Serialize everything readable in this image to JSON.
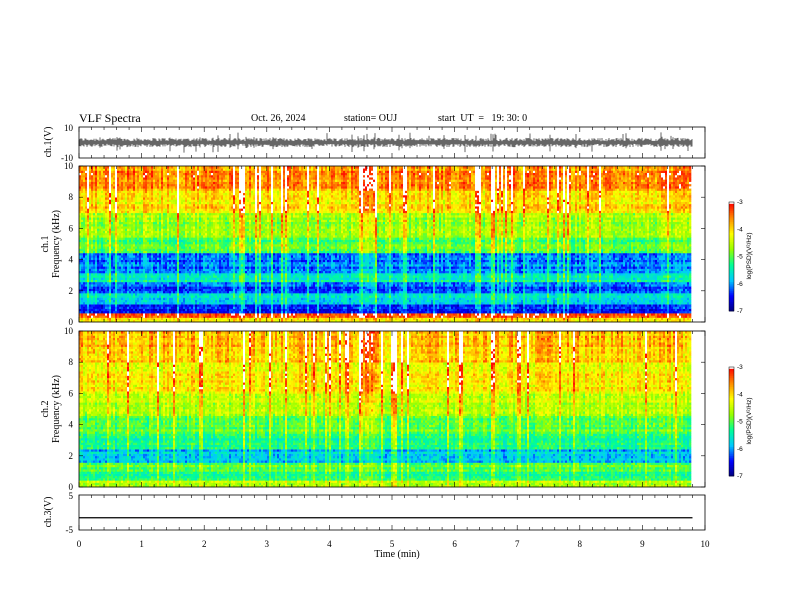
{
  "header": {
    "title": "VLF Spectra",
    "date": "Oct. 26, 2024",
    "station": "station= OUJ",
    "start_ut": "start  UT  =   19: 30: 0"
  },
  "colors": {
    "colormap": [
      "#00007a",
      "#0000ff",
      "#00c8ff",
      "#00ff96",
      "#96ff00",
      "#ffff00",
      "#ff8c00",
      "#ff0000",
      "#ffffff"
    ]
  },
  "chart_data": [
    {
      "type": "line",
      "id": "ch1-waveform",
      "ylabel": "ch.1(V)",
      "ylim": [
        -10,
        10
      ],
      "yticks": [
        "10",
        "-10"
      ],
      "note_values": "noisy waveform around 0 V with amplitude about ±3 V",
      "y_mean": 0,
      "y_amplitude": 3
    },
    {
      "type": "heatmap",
      "id": "ch1-spectrogram",
      "ylabel_line1": "ch.1",
      "ylabel_line2": "Frequency (kHz)",
      "ylim": [
        0,
        10
      ],
      "yticks": [
        "0",
        "2",
        "4",
        "6",
        "8",
        "10"
      ],
      "colorbar": {
        "label": "log(PSD)(V²/Hz)",
        "range": [
          -7,
          -3
        ],
        "ticks": [
          "-3",
          "-4",
          "-5",
          "-6",
          "-7"
        ]
      },
      "bands_khz": [
        {
          "from": 0,
          "to": 0.3,
          "level": -4.2
        },
        {
          "from": 0.3,
          "to": 0.6,
          "level": -3.2
        },
        {
          "from": 0.6,
          "to": 1.2,
          "level": -6.3
        },
        {
          "from": 1.2,
          "to": 1.8,
          "level": -5.6
        },
        {
          "from": 1.8,
          "to": 2.6,
          "level": -6.2
        },
        {
          "from": 2.6,
          "to": 3.2,
          "level": -5.4
        },
        {
          "from": 3.2,
          "to": 4.4,
          "level": -6.1
        },
        {
          "from": 4.4,
          "to": 5.4,
          "level": -5.0
        },
        {
          "from": 5.4,
          "to": 7.0,
          "level": -4.6
        },
        {
          "from": 7.0,
          "to": 8.5,
          "level": -4.0
        },
        {
          "from": 8.5,
          "to": 10,
          "level": -3.6
        }
      ]
    },
    {
      "type": "heatmap",
      "id": "ch2-spectrogram",
      "ylabel_line1": "ch.2",
      "ylabel_line2": "Frequency (kHz)",
      "ylim": [
        0,
        10
      ],
      "yticks": [
        "0",
        "2",
        "4",
        "6",
        "8",
        "10"
      ],
      "colorbar": {
        "label": "log(PSD)(V²/Hz)",
        "range": [
          -7,
          -3
        ],
        "ticks": [
          "-3",
          "-4",
          "-5",
          "-6",
          "-7"
        ]
      },
      "bands_khz": [
        {
          "from": 0,
          "to": 0.4,
          "level": -4.6
        },
        {
          "from": 0.4,
          "to": 1.0,
          "level": -5.3
        },
        {
          "from": 1.0,
          "to": 1.6,
          "level": -4.9
        },
        {
          "from": 1.6,
          "to": 2.4,
          "level": -5.8
        },
        {
          "from": 2.4,
          "to": 3.4,
          "level": -5.3
        },
        {
          "from": 3.4,
          "to": 4.6,
          "level": -4.9
        },
        {
          "from": 4.6,
          "to": 6.0,
          "level": -4.5
        },
        {
          "from": 6.0,
          "to": 8.0,
          "level": -4.1
        },
        {
          "from": 8.0,
          "to": 10,
          "level": -3.8
        }
      ]
    },
    {
      "type": "line",
      "id": "ch3-waveform",
      "ylabel": "ch.3(V)",
      "ylim": [
        -5,
        5
      ],
      "yticks": [
        "5",
        "-5"
      ],
      "x": [
        0,
        9.8
      ],
      "y": [
        -1.5,
        -1.5
      ]
    }
  ],
  "x_axis": {
    "label": "Time (min)",
    "xlim": [
      0,
      10
    ],
    "ticks": [
      "0",
      "1",
      "2",
      "3",
      "4",
      "5",
      "6",
      "7",
      "8",
      "9",
      "10"
    ],
    "data_end_min": 9.8
  }
}
